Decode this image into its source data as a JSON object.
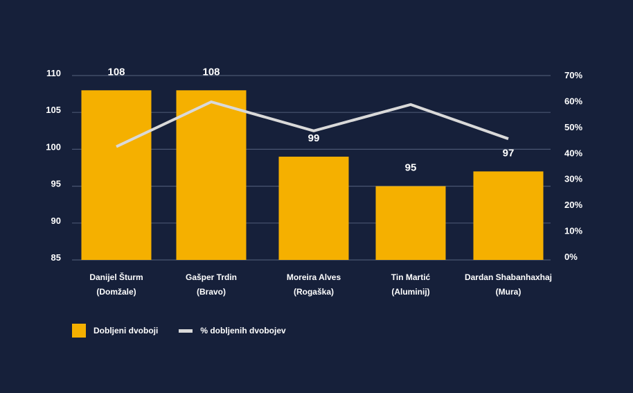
{
  "colors": {
    "background": "#16203a",
    "bar": "#f5b000",
    "line": "#d9d9d9",
    "grid": "#4a5672",
    "text": "#ffffff"
  },
  "chart_data": {
    "type": "bar",
    "categories": [
      [
        "Danijel Šturm",
        "(Domžale)"
      ],
      [
        "Gašper Trdin",
        "(Bravo)"
      ],
      [
        "Moreira Alves",
        "(Rogaška)"
      ],
      [
        "Tin Martić",
        "(Aluminij)"
      ],
      [
        "Dardan Shabanhaxhaj",
        "(Mura)"
      ]
    ],
    "series": [
      {
        "name": "Dobljeni dvoboji",
        "type": "bar",
        "axis": "left",
        "values": [
          108,
          108,
          99,
          95,
          97
        ]
      },
      {
        "name": "% dobljenih dvobojev",
        "type": "line",
        "axis": "right",
        "values": [
          43,
          60,
          49,
          59,
          46
        ]
      }
    ],
    "data_labels": [
      "108",
      "108",
      "99",
      "95",
      "97"
    ],
    "y_left": {
      "min": 85,
      "max": 110,
      "ticks": [
        110,
        105,
        100,
        95,
        90,
        85
      ]
    },
    "y_right": {
      "min": 0,
      "max": 70,
      "ticks": [
        "70%",
        "60%",
        "50%",
        "40%",
        "30%",
        "20%",
        "10%",
        "0%"
      ]
    },
    "grid": true,
    "legend_position": "bottom-left"
  }
}
